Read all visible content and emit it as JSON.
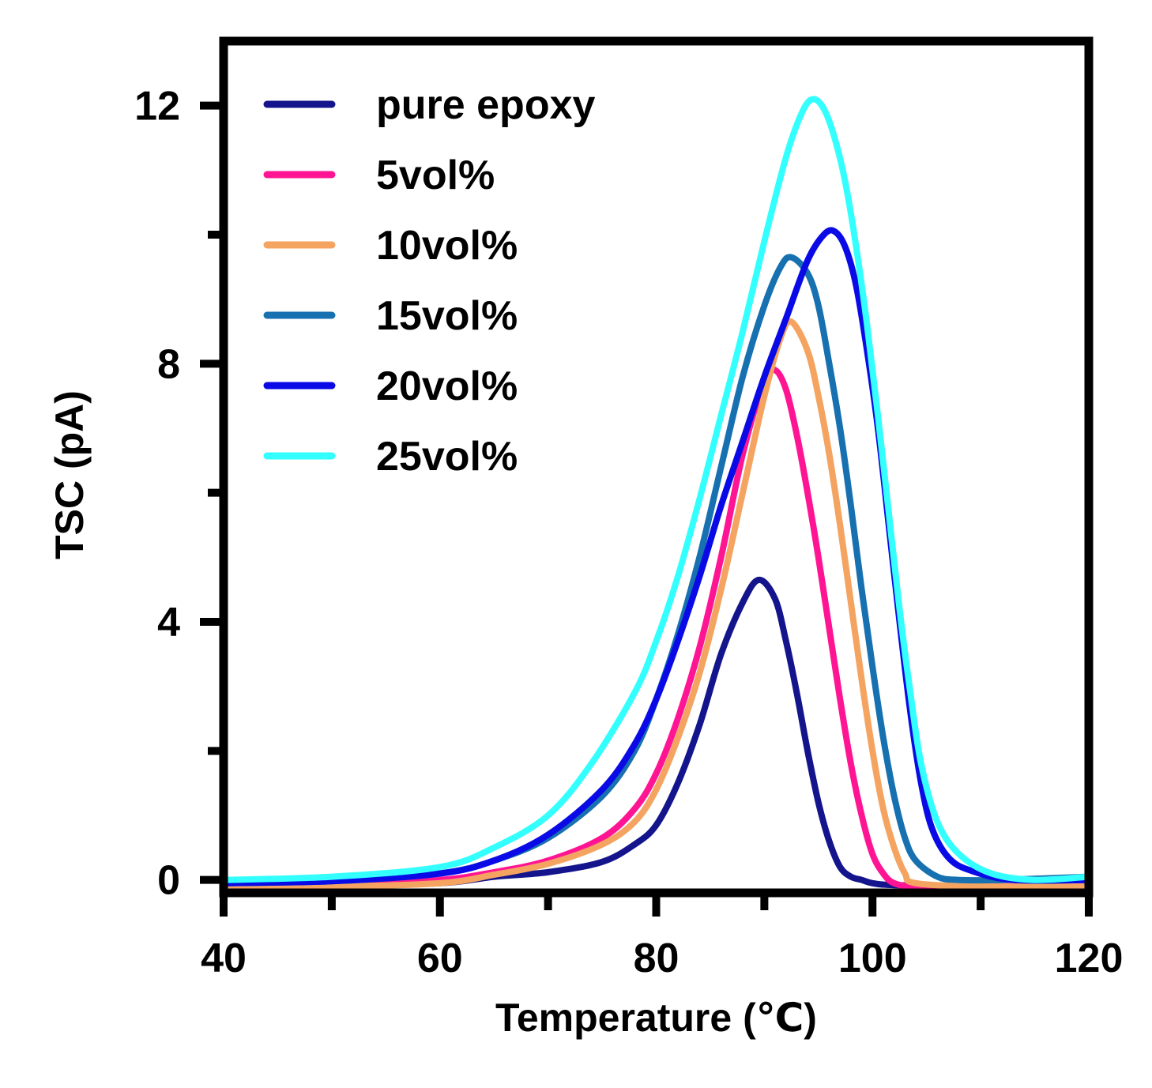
{
  "chart_data": {
    "type": "line",
    "title": "",
    "xlabel": "Temperature (℃)",
    "ylabel": "TSC (pA)",
    "xlim": [
      40,
      120
    ],
    "ylim": [
      -0.2,
      13
    ],
    "x_ticks": [
      40,
      60,
      80,
      100,
      120
    ],
    "x_minor_ticks": [
      50,
      70,
      90,
      110
    ],
    "y_ticks": [
      0,
      4,
      8,
      12
    ],
    "y_minor_ticks": [
      2,
      6,
      10
    ],
    "x_tick_labels": [
      "40",
      "60",
      "80",
      "100",
      "120"
    ],
    "y_tick_labels": [
      "0",
      "4",
      "8",
      "12"
    ],
    "grid": false,
    "legend_position": "top-left",
    "series": [
      {
        "name": "pure epoxy",
        "color": "#14148c",
        "x": [
          40,
          50,
          60,
          65,
          70,
          75,
          78,
          80,
          82,
          84,
          86,
          88,
          89.5,
          91,
          92,
          93,
          94,
          95,
          96,
          97,
          98,
          99,
          100,
          102,
          110,
          120
        ],
        "y": [
          -0.05,
          -0.08,
          -0.05,
          0.05,
          0.12,
          0.28,
          0.55,
          0.85,
          1.5,
          2.4,
          3.5,
          4.3,
          4.65,
          4.35,
          3.7,
          2.9,
          2.0,
          1.2,
          0.6,
          0.2,
          0.05,
          0.0,
          -0.05,
          -0.08,
          -0.1,
          -0.1
        ]
      },
      {
        "name": "5vol%",
        "color": "#ff1493",
        "x": [
          40,
          50,
          60,
          65,
          70,
          75,
          78,
          80,
          82,
          84,
          86,
          88,
          90,
          91,
          92,
          93,
          94,
          95,
          96,
          97,
          98,
          99,
          100,
          101,
          102,
          104,
          110,
          120
        ],
        "y": [
          -0.05,
          -0.08,
          0.0,
          0.12,
          0.3,
          0.65,
          1.1,
          1.65,
          2.5,
          3.6,
          5.0,
          6.6,
          7.75,
          7.9,
          7.6,
          6.9,
          6.0,
          5.0,
          3.9,
          2.8,
          1.8,
          1.0,
          0.4,
          0.1,
          -0.05,
          -0.1,
          -0.1,
          -0.1
        ]
      },
      {
        "name": "10vol%",
        "color": "#f4a460",
        "x": [
          40,
          50,
          60,
          65,
          70,
          75,
          78,
          80,
          82,
          84,
          86,
          88,
          90,
          91.5,
          92.5,
          94,
          95,
          96,
          97,
          98,
          99,
          100,
          101,
          102,
          103,
          104,
          110,
          120
        ],
        "y": [
          -0.08,
          -0.1,
          -0.05,
          0.08,
          0.25,
          0.55,
          0.9,
          1.4,
          2.2,
          3.2,
          4.5,
          6.0,
          7.5,
          8.4,
          8.65,
          8.2,
          7.5,
          6.6,
          5.5,
          4.3,
          3.1,
          2.0,
          1.1,
          0.5,
          0.1,
          -0.05,
          -0.1,
          -0.1
        ]
      },
      {
        "name": "15vol%",
        "color": "#1770b0",
        "x": [
          40,
          50,
          60,
          65,
          70,
          75,
          78,
          80,
          82,
          84,
          86,
          88,
          90,
          91.5,
          92.5,
          94,
          95,
          96,
          97,
          98,
          99,
          100,
          101,
          102,
          103,
          104,
          106,
          108,
          112,
          120
        ],
        "y": [
          -0.05,
          -0.02,
          0.1,
          0.3,
          0.65,
          1.3,
          2.0,
          2.8,
          3.8,
          5.0,
          6.4,
          7.8,
          8.9,
          9.5,
          9.65,
          9.4,
          8.9,
          8.0,
          7.0,
          5.8,
          4.5,
          3.3,
          2.2,
          1.3,
          0.65,
          0.3,
          0.05,
          0.0,
          0.0,
          0.05
        ]
      },
      {
        "name": "20vol%",
        "color": "#0a0ae6",
        "x": [
          40,
          50,
          60,
          65,
          70,
          75,
          78,
          80,
          82,
          84,
          86,
          88,
          90,
          92,
          94,
          95.5,
          96.5,
          97.5,
          98.5,
          99.5,
          100.5,
          101.5,
          102.5,
          103.5,
          104.5,
          105.5,
          107,
          109,
          113,
          120
        ],
        "y": [
          -0.05,
          -0.02,
          0.1,
          0.3,
          0.7,
          1.4,
          2.1,
          2.8,
          3.7,
          4.7,
          5.8,
          6.8,
          7.8,
          8.7,
          9.6,
          10.0,
          10.05,
          9.8,
          9.2,
          8.2,
          7.0,
          5.5,
          4.0,
          2.6,
          1.5,
          0.8,
          0.35,
          0.15,
          0.0,
          0.0
        ]
      },
      {
        "name": "25vol%",
        "color": "#33ffff",
        "x": [
          40,
          50,
          60,
          65,
          70,
          74,
          78,
          80,
          82,
          84,
          86,
          88,
          90,
          92,
          93.5,
          94.5,
          95.5,
          96.5,
          97.5,
          98.5,
          99.5,
          100.5,
          101.5,
          102.5,
          103.5,
          104.5,
          106,
          108,
          111,
          115,
          120
        ],
        "y": [
          0.0,
          0.05,
          0.2,
          0.5,
          1.0,
          1.8,
          2.9,
          3.7,
          4.7,
          5.9,
          7.2,
          8.5,
          9.9,
          11.2,
          11.9,
          12.1,
          11.95,
          11.5,
          10.8,
          9.8,
          8.6,
          7.2,
          5.7,
          4.2,
          2.9,
          1.8,
          0.9,
          0.4,
          0.1,
          0.0,
          0.05
        ]
      }
    ]
  }
}
